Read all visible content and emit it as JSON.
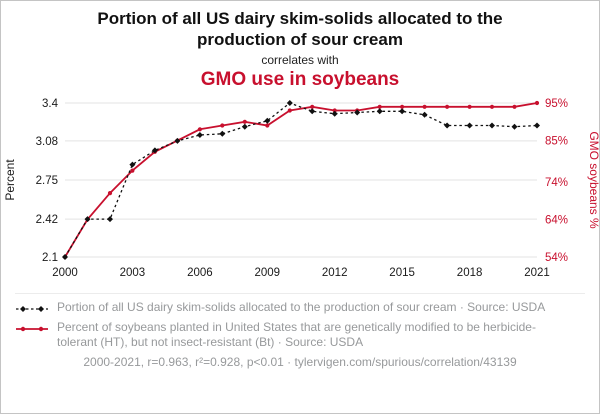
{
  "header": {
    "title": "Portion of all US dairy skim-solids allocated to the production of sour cream",
    "correlates_label": "correlates with",
    "secondary_title": "GMO use in soybeans"
  },
  "legend": {
    "items": [
      {
        "label": "Portion of all US dairy skim-solids allocated to the production of sour cream · Source: USDA",
        "style": "black-dashed-diamond"
      },
      {
        "label": "Percent of soybeans planted in United States that are genetically modified to be herbicide-tolerant (HT), but not insect-resistant (Bt) · Source: USDA",
        "style": "red-solid-dot"
      }
    ]
  },
  "footer": {
    "text": "2000-2021, r=0.963, r²=0.928, p<0.01 · tylervigen.com/spurious/correlation/43139"
  },
  "colors": {
    "accent_red": "#C8102E",
    "black": "#111111",
    "grid": "#e3e3e3",
    "legend_gray": "#97999b"
  },
  "chart_data": {
    "type": "line",
    "title": "Portion of all US dairy skim-solids allocated to the production of sour cream correlates with GMO use in soybeans",
    "x": [
      2000,
      2001,
      2002,
      2003,
      2004,
      2005,
      2006,
      2007,
      2008,
      2009,
      2010,
      2011,
      2012,
      2013,
      2014,
      2015,
      2016,
      2017,
      2018,
      2019,
      2020,
      2021
    ],
    "x_tick_labels": [
      "2000",
      "2003",
      "2006",
      "2009",
      "2012",
      "2015",
      "2018",
      "2021"
    ],
    "series": [
      {
        "name": "Portion of all US dairy skim-solids allocated to the production of sour cream",
        "axis": "left",
        "line_style": "dashed",
        "marker": "diamond",
        "values": [
          2.1,
          2.42,
          2.42,
          2.88,
          3.0,
          3.08,
          3.13,
          3.14,
          3.2,
          3.25,
          3.4,
          3.33,
          3.31,
          3.32,
          3.33,
          3.33,
          3.3,
          3.21,
          3.21,
          3.21,
          3.2,
          3.21
        ]
      },
      {
        "name": "Percent of soybeans planted in United States that are genetically modified to be herbicide-tolerant (HT), but not insect-resistant (Bt)",
        "axis": "right",
        "line_style": "solid",
        "marker": "circle",
        "values": [
          54,
          64,
          71,
          77,
          82,
          85,
          88,
          89,
          90,
          89,
          93,
          94,
          93,
          93,
          94,
          94,
          94,
          94,
          94,
          94,
          94,
          95
        ]
      }
    ],
    "left_axis": {
      "label": "Percent",
      "min": 2.1,
      "max": 3.4,
      "ticks": [
        2.1,
        2.42,
        2.75,
        3.08,
        3.4
      ],
      "tick_labels": [
        "2.1",
        "2.42",
        "2.75",
        "3.08",
        "3.4"
      ]
    },
    "right_axis": {
      "label": "GMO soybeans %",
      "min": 54,
      "max": 95,
      "ticks": [
        54,
        64,
        74,
        85,
        95
      ],
      "tick_labels": [
        "54%",
        "64%",
        "74%",
        "85%",
        "95%"
      ]
    },
    "grid": true,
    "legend_position": "bottom"
  }
}
